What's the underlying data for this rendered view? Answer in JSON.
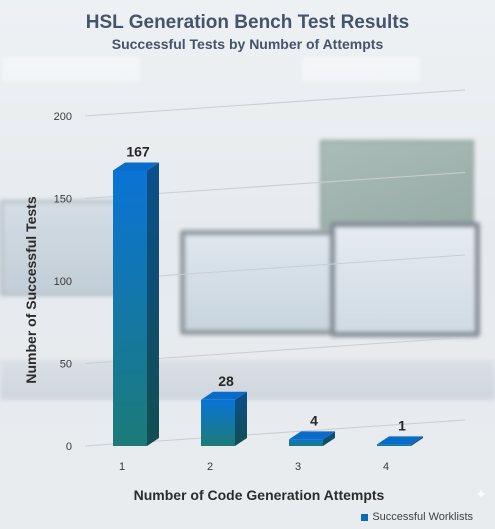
{
  "chart_data": {
    "type": "bar",
    "title": "HSL Generation Bench Test Results",
    "subtitle": "Successful Tests by Number of Attempts",
    "xlabel": "Number of Code Generation Attempts",
    "ylabel": "Number of Successful Tests",
    "categories": [
      "1",
      "2",
      "3",
      "4"
    ],
    "series": [
      {
        "name": "Successful Worklists",
        "values": [
          167,
          28,
          4,
          1
        ]
      }
    ],
    "data_labels": [
      "167",
      "28",
      "4",
      "1"
    ],
    "ylim": [
      0,
      200
    ],
    "yticks": [
      "0",
      "50",
      "100",
      "150",
      "200"
    ],
    "grid": true,
    "legend_position": "bottom-right",
    "bar_style": "3d",
    "colors": {
      "bar_top": "#0a73d4",
      "bar_bottom": "#1b7a7a",
      "bar_side": "#0d4a7a",
      "title": "#44546a"
    }
  },
  "legend": {
    "label": "Successful Worklists"
  },
  "decor": {
    "sparkle_icon": "✦"
  }
}
